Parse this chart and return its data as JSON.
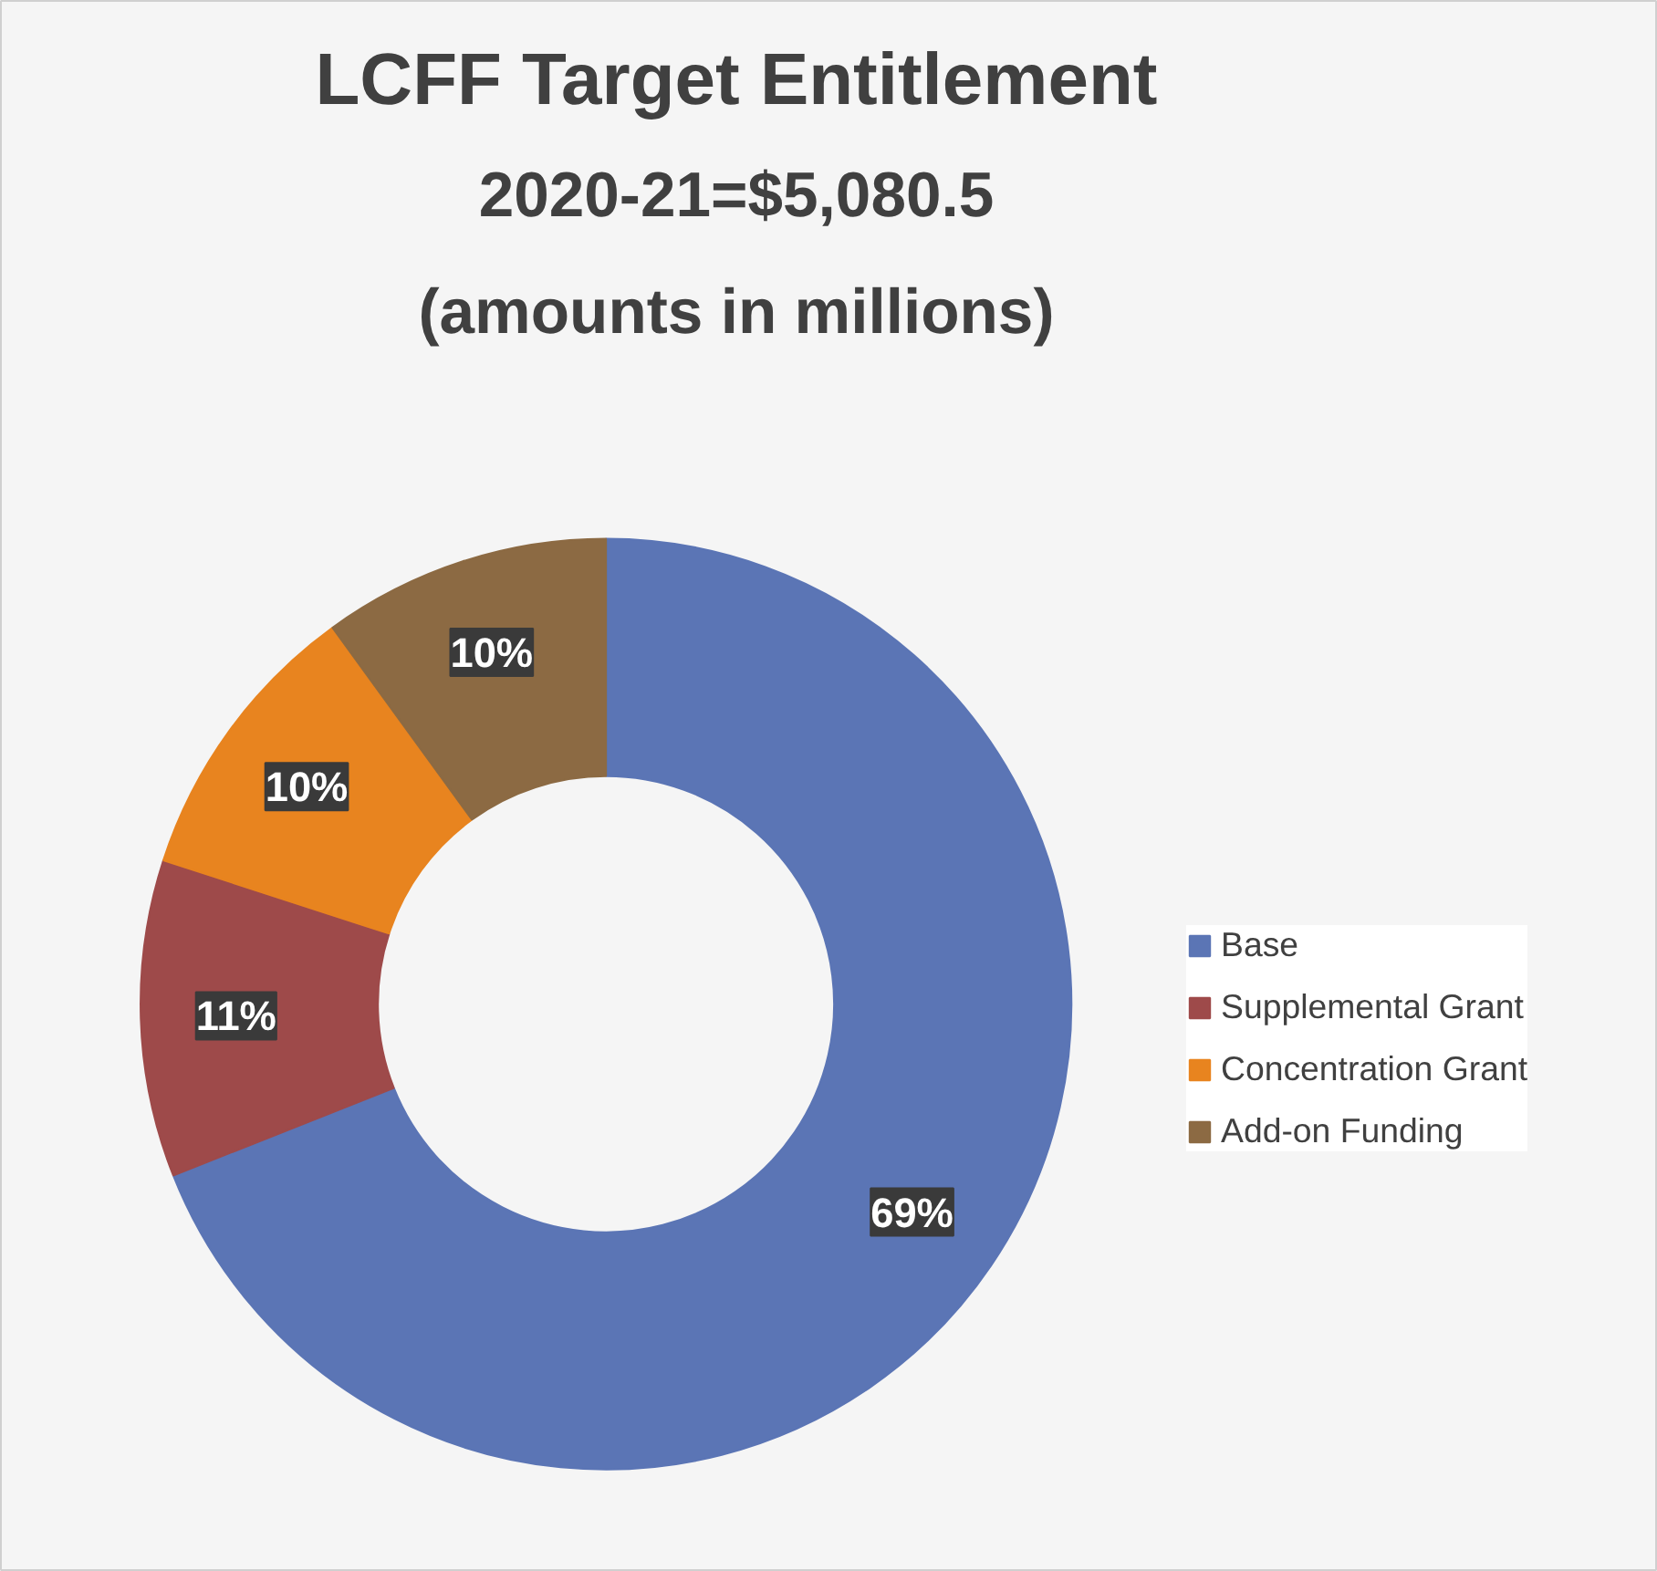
{
  "chart_data": {
    "type": "donut",
    "title": "LCFF Target Entitlement",
    "subtitle": "2020-21=$5,080.5\n(amounts in millions)",
    "categories": [
      "Base",
      "Supplemental Grant",
      "Concentration Grant",
      "Add-on Funding"
    ],
    "values": [
      69,
      11,
      10,
      10
    ],
    "colors": [
      "#5b75b5",
      "#9e4a4a",
      "#e8841f",
      "#8c6a43"
    ],
    "value_labels": [
      "69%",
      "11%",
      "10%",
      "10%"
    ],
    "legend": "right"
  }
}
